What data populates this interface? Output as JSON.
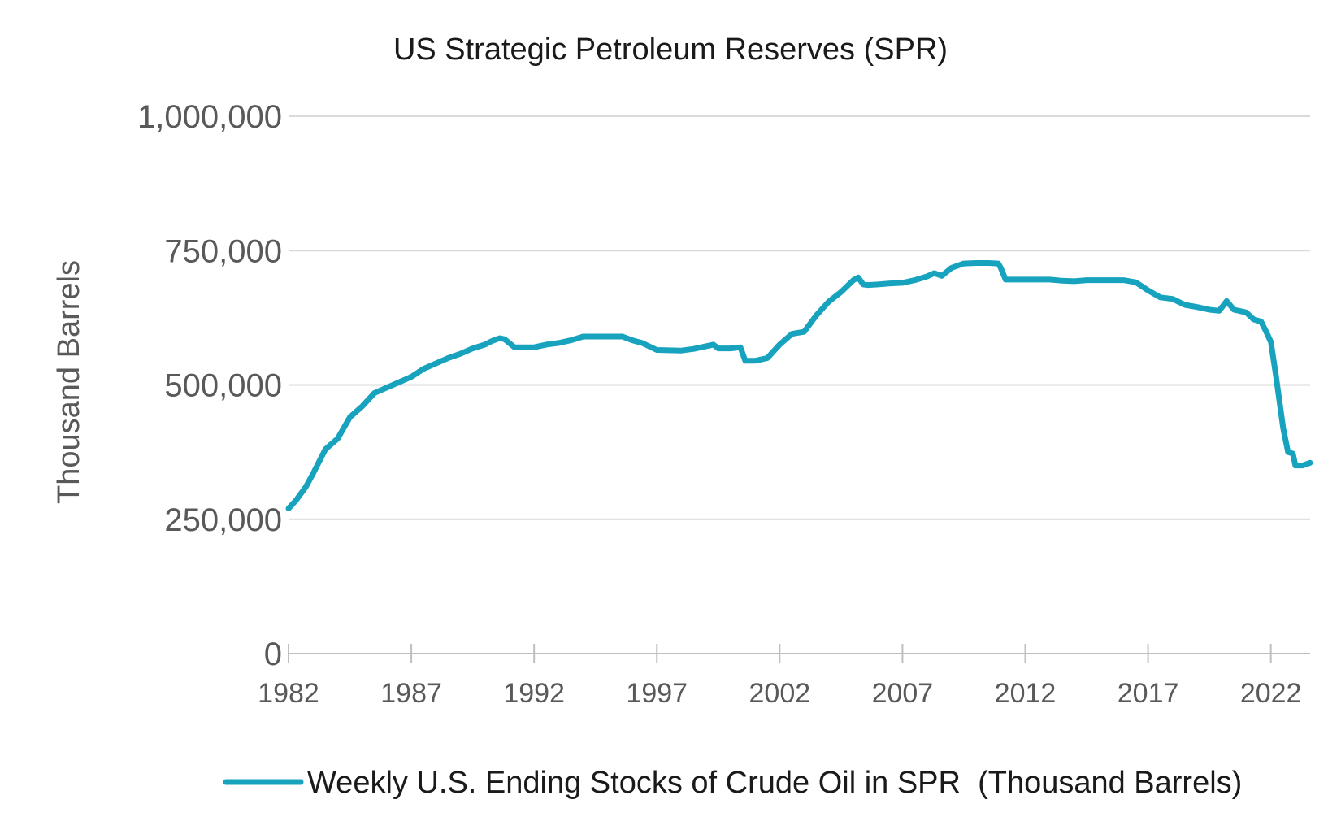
{
  "chart_data": {
    "type": "line",
    "title": "US Strategic Petroleum Reserves (SPR)",
    "ylabel": "Thousand Barrels",
    "xlabel": "",
    "xlim": [
      1982,
      2023.6
    ],
    "ylim": [
      0,
      1000000
    ],
    "grid": true,
    "legend_position": "bottom",
    "yticks": [
      {
        "value": 0,
        "label": "0"
      },
      {
        "value": 250000,
        "label": "250,000"
      },
      {
        "value": 500000,
        "label": "500,000"
      },
      {
        "value": 750000,
        "label": "750,000"
      },
      {
        "value": 1000000,
        "label": "1,000,000"
      }
    ],
    "xticks": [
      {
        "value": 1982,
        "label": "1982"
      },
      {
        "value": 1987,
        "label": "1987"
      },
      {
        "value": 1992,
        "label": "1992"
      },
      {
        "value": 1997,
        "label": "1997"
      },
      {
        "value": 2002,
        "label": "2002"
      },
      {
        "value": 2007,
        "label": "2007"
      },
      {
        "value": 2012,
        "label": "2012"
      },
      {
        "value": 2017,
        "label": "2017"
      },
      {
        "value": 2022,
        "label": "2022"
      }
    ],
    "series": [
      {
        "name": "Weekly U.S. Ending Stocks of Crude Oil in SPR  (Thousand Barrels)",
        "color": "#17a2be",
        "x": [
          1982.0,
          1982.3,
          1982.7,
          1983.0,
          1983.5,
          1984.0,
          1984.5,
          1985.0,
          1985.5,
          1986.0,
          1986.5,
          1987.0,
          1987.5,
          1988.0,
          1988.5,
          1989.0,
          1989.5,
          1990.0,
          1990.3,
          1990.6,
          1990.8,
          1991.2,
          1992.0,
          1992.5,
          1993.0,
          1993.5,
          1994.0,
          1995.0,
          1995.6,
          1996.0,
          1996.4,
          1997.0,
          1998.0,
          1998.5,
          1999.0,
          1999.3,
          1999.5,
          2000.0,
          2000.4,
          2000.6,
          2000.7,
          2001.0,
          2001.5,
          2002.0,
          2002.5,
          2003.0,
          2003.5,
          2004.0,
          2004.5,
          2005.0,
          2005.2,
          2005.4,
          2005.6,
          2006.0,
          2006.5,
          2007.0,
          2007.5,
          2008.0,
          2008.3,
          2008.6,
          2009.0,
          2009.5,
          2010.0,
          2010.5,
          2010.9,
          2011.0,
          2011.2,
          2012.0,
          2013.0,
          2013.5,
          2014.0,
          2014.5,
          2015.0,
          2016.0,
          2016.5,
          2017.0,
          2017.5,
          2018.0,
          2018.5,
          2019.0,
          2019.5,
          2019.9,
          2020.2,
          2020.5,
          2021.0,
          2021.3,
          2021.6,
          2021.8,
          2022.0,
          2022.2,
          2022.5,
          2022.7,
          2022.9,
          2023.0,
          2023.3,
          2023.6
        ],
        "values": [
          270000,
          285000,
          310000,
          335000,
          380000,
          400000,
          440000,
          460000,
          485000,
          495000,
          505000,
          515000,
          530000,
          540000,
          550000,
          558000,
          568000,
          575000,
          582000,
          587000,
          585000,
          570000,
          570000,
          575000,
          578000,
          583000,
          590000,
          590000,
          590000,
          583000,
          578000,
          565000,
          564000,
          567000,
          572000,
          575000,
          568000,
          568000,
          570000,
          545000,
          545000,
          545000,
          550000,
          575000,
          595000,
          599000,
          630000,
          655000,
          673000,
          695000,
          700000,
          687000,
          686000,
          687000,
          689000,
          690000,
          695000,
          702000,
          708000,
          703000,
          718000,
          726000,
          727000,
          727000,
          726000,
          718000,
          696000,
          696000,
          696000,
          694000,
          693000,
          695000,
          695000,
          695000,
          691000,
          676000,
          663000,
          660000,
          649000,
          645000,
          640000,
          638000,
          656000,
          640000,
          635000,
          622000,
          618000,
          600000,
          580000,
          520000,
          420000,
          375000,
          372000,
          350000,
          350000,
          355000
        ]
      }
    ]
  }
}
